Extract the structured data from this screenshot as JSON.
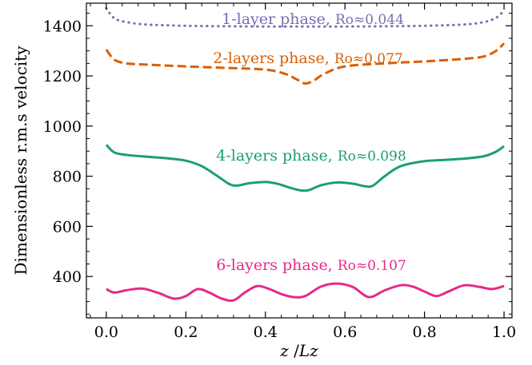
{
  "chart_data": {
    "type": "line",
    "xlabel_italic_parts": [
      "z",
      "Lz"
    ],
    "xlabel": "z /Lz",
    "ylabel": "Dimensionless r.m.s velocity",
    "xlim": [
      -0.05,
      1.02
    ],
    "ylim": [
      235,
      1490
    ],
    "xticks": [
      0.0,
      0.2,
      0.4,
      0.6,
      0.8,
      1.0
    ],
    "xtick_labels": [
      "0.0",
      "0.2",
      "0.4",
      "0.6",
      "0.8",
      "1.0"
    ],
    "yticks": [
      400,
      600,
      800,
      1000,
      1200,
      1400
    ],
    "ytick_labels": [
      "400",
      "600",
      "800",
      "1000",
      "1200",
      "1400"
    ],
    "grid": false,
    "legend": "none",
    "series": [
      {
        "name": "1-layer phase",
        "ro_label": "Ro≈0.044",
        "color": "#7570b3",
        "dash": "dotted",
        "x": [
          0.0,
          0.02,
          0.05,
          0.1,
          0.2,
          0.3,
          0.4,
          0.5,
          0.6,
          0.7,
          0.8,
          0.9,
          0.95,
          0.98,
          1.0
        ],
        "y": [
          1470,
          1430,
          1415,
          1405,
          1400,
          1398,
          1397,
          1397,
          1397,
          1398,
          1400,
          1405,
          1415,
          1432,
          1460
        ]
      },
      {
        "name": "2-layers phase",
        "ro_label": "Ro≈0.077",
        "color": "#d95f02",
        "dash": "dashed",
        "x": [
          0.0,
          0.02,
          0.05,
          0.1,
          0.2,
          0.3,
          0.4,
          0.45,
          0.48,
          0.5,
          0.52,
          0.55,
          0.6,
          0.7,
          0.8,
          0.9,
          0.95,
          0.98,
          1.0
        ],
        "y": [
          1305,
          1265,
          1250,
          1245,
          1238,
          1232,
          1225,
          1208,
          1185,
          1170,
          1180,
          1210,
          1238,
          1250,
          1258,
          1268,
          1278,
          1300,
          1330
        ]
      },
      {
        "name": "4-layers phase",
        "ro_label": "Ro≈0.098",
        "color": "#1b9e77",
        "dash": "solid",
        "x": [
          0.0,
          0.02,
          0.05,
          0.1,
          0.15,
          0.2,
          0.24,
          0.28,
          0.31,
          0.33,
          0.36,
          0.4,
          0.43,
          0.46,
          0.49,
          0.51,
          0.54,
          0.58,
          0.62,
          0.65,
          0.67,
          0.7,
          0.74,
          0.8,
          0.85,
          0.9,
          0.95,
          0.98,
          1.0
        ],
        "y": [
          925,
          895,
          885,
          878,
          872,
          862,
          840,
          800,
          768,
          763,
          772,
          777,
          770,
          755,
          743,
          745,
          764,
          775,
          770,
          760,
          762,
          800,
          840,
          860,
          865,
          870,
          880,
          898,
          920
        ]
      },
      {
        "name": "6-layers phase",
        "ro_label": "Ro≈0.107",
        "color": "#e7298a",
        "dash": "solid",
        "x": [
          0.0,
          0.02,
          0.05,
          0.09,
          0.13,
          0.17,
          0.2,
          0.23,
          0.26,
          0.29,
          0.32,
          0.35,
          0.38,
          0.41,
          0.44,
          0.47,
          0.5,
          0.54,
          0.58,
          0.62,
          0.66,
          0.7,
          0.74,
          0.77,
          0.8,
          0.83,
          0.86,
          0.9,
          0.94,
          0.97,
          1.0
        ],
        "y": [
          350,
          336,
          345,
          352,
          335,
          312,
          322,
          350,
          335,
          312,
          305,
          338,
          362,
          350,
          330,
          318,
          322,
          360,
          372,
          358,
          318,
          345,
          365,
          360,
          340,
          322,
          340,
          365,
          358,
          350,
          362
        ]
      }
    ]
  }
}
